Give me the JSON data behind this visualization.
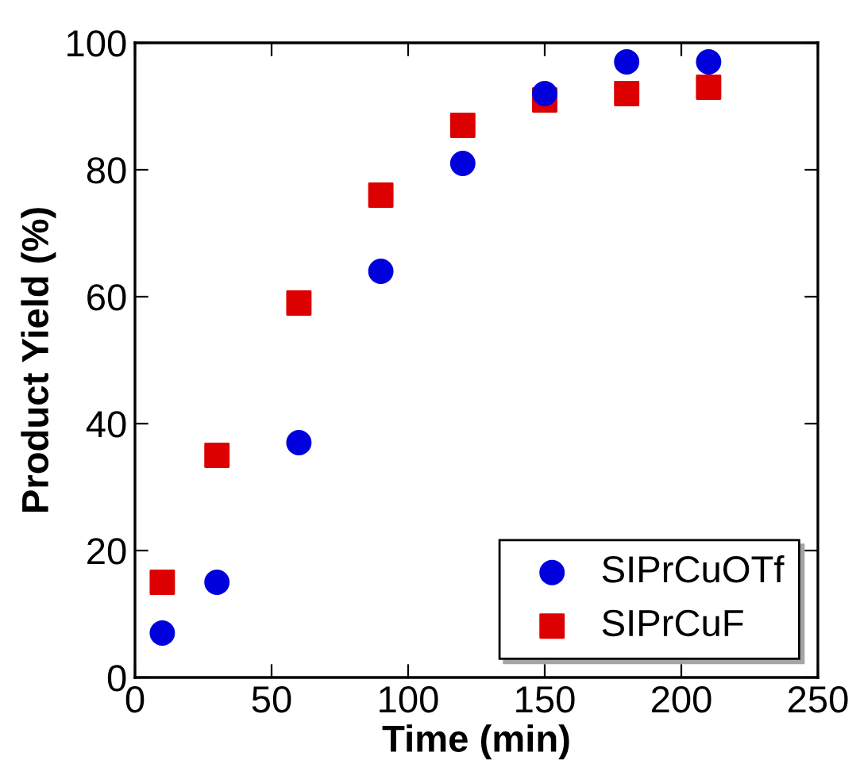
{
  "chart_data": {
    "type": "scatter",
    "xlabel": "Time (min)",
    "ylabel": "Product Yield (%)",
    "x": [
      10,
      30,
      60,
      90,
      120,
      150,
      180,
      210
    ],
    "series": [
      {
        "name": "SIPrCuOTf",
        "color": "#0000dd",
        "marker": "circle",
        "values": [
          7,
          15,
          37,
          64,
          81,
          92,
          97,
          97
        ]
      },
      {
        "name": "SIPrCuF",
        "color": "#dd0000",
        "marker": "square",
        "values": [
          15,
          35,
          59,
          76,
          87,
          91,
          92,
          93
        ]
      }
    ],
    "xlim": [
      0,
      250
    ],
    "xticks": [
      0,
      50,
      100,
      150,
      200,
      250
    ],
    "ylim": [
      0,
      100
    ],
    "yticks": [
      0,
      20,
      40,
      60,
      80,
      100
    ],
    "grid": false,
    "legend": "bottom right"
  }
}
